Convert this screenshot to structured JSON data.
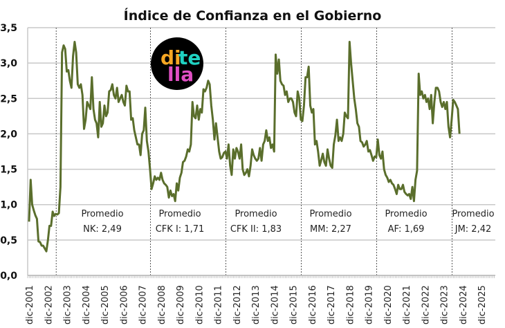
{
  "chart_data": {
    "type": "line",
    "title": "Índice de Confianza en el Gobierno",
    "xlabel": "",
    "ylabel": "",
    "ylim": [
      0,
      3.5
    ],
    "yticks": [
      "0,0",
      "0,5",
      "1,0",
      "1,5",
      "2,0",
      "2,5",
      "3,0",
      "3,5"
    ],
    "grid": true,
    "legend": "none",
    "line_color": "#5a6e2c",
    "x_tick_labels": [
      "dic-2001",
      "dic-2002",
      "dic-2003",
      "dic-2004",
      "dic-2005",
      "dic-2006",
      "dic-2007",
      "dic-2008",
      "dic-2009",
      "dic-2010",
      "dic-2011",
      "dic-2012",
      "dic-2013",
      "dic-2014",
      "dic-2015",
      "dic-2016",
      "dic-2017",
      "dic-2018",
      "dic-2019",
      "dic-2020",
      "dic-2021",
      "dic-2022",
      "dic-2023",
      "dic-2024",
      "dic-2025"
    ],
    "series": [
      {
        "name": "Índice de Confianza en el Gobierno",
        "x_start": "dic-2001",
        "frequency": "monthly",
        "values": [
          0.76,
          1.35,
          1.0,
          0.92,
          0.85,
          0.8,
          0.48,
          0.47,
          0.42,
          0.42,
          0.38,
          0.34,
          0.5,
          0.7,
          0.7,
          0.9,
          0.84,
          0.87,
          0.86,
          0.88,
          1.25,
          3.15,
          3.25,
          3.2,
          2.88,
          2.9,
          2.75,
          2.65,
          3.1,
          3.3,
          3.15,
          2.7,
          2.65,
          2.7,
          2.55,
          2.07,
          2.2,
          2.45,
          2.4,
          2.35,
          2.8,
          2.35,
          2.2,
          2.15,
          1.95,
          2.45,
          2.1,
          2.15,
          2.4,
          2.25,
          2.3,
          2.6,
          2.62,
          2.7,
          2.55,
          2.5,
          2.65,
          2.45,
          2.5,
          2.55,
          2.45,
          2.4,
          2.68,
          2.6,
          2.6,
          2.2,
          2.22,
          2.05,
          1.95,
          1.85,
          1.85,
          1.7,
          2.0,
          2.05,
          2.37,
          1.9,
          1.75,
          1.5,
          1.22,
          1.3,
          1.4,
          1.35,
          1.38,
          1.35,
          1.45,
          1.35,
          1.3,
          1.28,
          1.25,
          1.1,
          1.2,
          1.12,
          1.15,
          1.05,
          1.3,
          1.2,
          1.38,
          1.45,
          1.6,
          1.62,
          1.68,
          1.78,
          1.75,
          1.85,
          2.45,
          2.25,
          2.22,
          2.4,
          2.2,
          2.35,
          2.3,
          2.63,
          2.6,
          2.65,
          2.75,
          2.7,
          2.4,
          2.2,
          1.92,
          2.15,
          1.95,
          1.75,
          1.65,
          1.67,
          1.73,
          1.75,
          1.65,
          1.85,
          1.55,
          1.42,
          1.78,
          1.65,
          1.8,
          1.75,
          1.65,
          1.85,
          1.5,
          1.42,
          1.45,
          1.5,
          1.4,
          1.55,
          1.78,
          1.7,
          1.65,
          1.62,
          1.65,
          1.8,
          1.62,
          1.85,
          1.9,
          2.05,
          1.9,
          1.95,
          1.8,
          1.85,
          1.75,
          3.12,
          2.85,
          3.05,
          2.75,
          2.7,
          2.68,
          2.55,
          2.6,
          2.45,
          2.5,
          2.5,
          2.45,
          2.3,
          2.25,
          2.6,
          2.5,
          2.2,
          2.18,
          2.4,
          2.8,
          2.8,
          2.95,
          2.4,
          2.3,
          2.35,
          1.85,
          1.9,
          1.75,
          1.55,
          1.63,
          1.72,
          1.6,
          1.55,
          1.78,
          1.65,
          1.55,
          1.52,
          1.85,
          1.98,
          2.2,
          1.9,
          1.95,
          1.9,
          2.0,
          2.3,
          2.25,
          2.22,
          3.3,
          3.0,
          2.75,
          2.5,
          2.35,
          2.15,
          2.1,
          1.9,
          1.88,
          1.82,
          1.85,
          1.9,
          1.75,
          1.77,
          1.7,
          1.62,
          1.68,
          1.67,
          1.92,
          1.7,
          1.65,
          1.75,
          1.5,
          1.42,
          1.38,
          1.32,
          1.35,
          1.3,
          1.28,
          1.22,
          1.15,
          1.28,
          1.22,
          1.22,
          1.28,
          1.18,
          1.15,
          1.13,
          1.15,
          1.08,
          1.25,
          1.05,
          1.35,
          1.48,
          2.85,
          2.55,
          2.6,
          2.5,
          2.55,
          2.45,
          2.5,
          2.35,
          2.55,
          2.15,
          2.45,
          2.65,
          2.65,
          2.6,
          2.45,
          2.38,
          2.45,
          2.35,
          2.45,
          2.1,
          1.95,
          2.2,
          2.48,
          2.45,
          2.4,
          2.35,
          2.0
        ]
      }
    ],
    "vertical_markers": [
      "dic-2002",
      "dic-2007",
      "dic-2011",
      "dic-2015",
      "dic-2019",
      "dic-2023"
    ],
    "annotations": [
      {
        "line1": "Promedio",
        "line2": "NK: 2,49"
      },
      {
        "line1": "Promedio",
        "line2": "CFK I: 1,71"
      },
      {
        "line1": "Promedio",
        "line2": "CFK II: 1,83"
      },
      {
        "line1": "Promedio",
        "line2": "MM: 2,27"
      },
      {
        "line1": "Promedio",
        "line2": "AF: 1,69"
      },
      {
        "line1": "Promedio",
        "line2": "JM: 2,42"
      }
    ]
  },
  "logo": {
    "part1": "di",
    "part2": "te",
    "part3": "lla",
    "color1": "#f5a623",
    "color2": "#1fd1c1",
    "color3": "#e04fc4"
  }
}
